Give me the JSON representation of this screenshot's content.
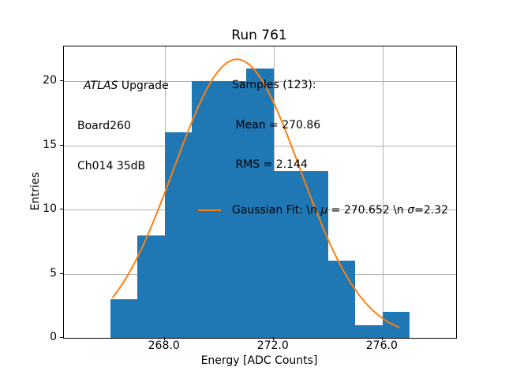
{
  "figure": {
    "background": "#ffffff"
  },
  "annotation": {
    "line1_italic": "ATLAS",
    "line1_rest": " Upgrade",
    "line2": "Board260",
    "line3": "Ch014 35dB"
  },
  "legend": {
    "samples": {
      "line1": "Samples (123):",
      "line2": " Mean = 270.86",
      "line3": " RMS = 2.144"
    },
    "gaussian": {
      "pre": "Gaussian Fit: \\n ",
      "mu": "μ",
      "mid": " = 270.652 \\n ",
      "sigma": "σ",
      "post": "=2.32"
    }
  },
  "chart_data": {
    "type": "bar",
    "subtype": "histogram",
    "title": "Run 761",
    "xlabel": "Energy [ADC Counts]",
    "ylabel": "Entries",
    "bin_edges": [
      266,
      267,
      268,
      269,
      270,
      271,
      272,
      273,
      274,
      275,
      276,
      277
    ],
    "counts": [
      3,
      8,
      16,
      20,
      20,
      21,
      13,
      13,
      6,
      1,
      2
    ],
    "total_entries": 123,
    "mean": 270.86,
    "rms": 2.144,
    "fit": {
      "type": "gaussian",
      "mu": 270.652,
      "sigma": 2.32,
      "amplitude": 21.7,
      "x_start": 266.1,
      "x_end": 276.6
    },
    "xlim": [
      264.3,
      278.7
    ],
    "ylim": [
      0,
      22.7
    ],
    "xticks": [
      268,
      272,
      276
    ],
    "xtick_labels": [
      "268.0",
      "272.0",
      "276.0"
    ],
    "yticks": [
      0,
      5,
      10,
      15,
      20
    ],
    "ytick_labels": [
      "0",
      "5",
      "10",
      "15",
      "20"
    ],
    "grid": true,
    "legend_position": "upper-right",
    "colors": {
      "bar": "#1f77b4",
      "fit_line": "#ff7f0e",
      "grid": "#b0b0b0",
      "text": "#000000"
    }
  }
}
